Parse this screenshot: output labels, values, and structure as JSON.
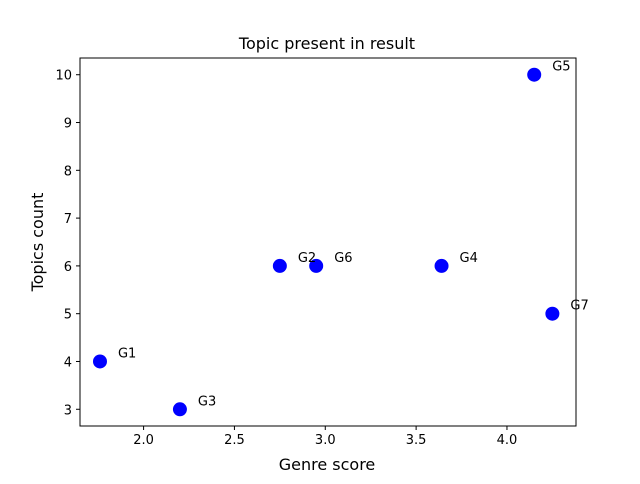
{
  "chart_data": {
    "type": "scatter",
    "title": "Topic present in result",
    "xlabel": "Genre score",
    "ylabel": "Topics count",
    "xlim": [
      1.65,
      4.38
    ],
    "ylim": [
      2.65,
      10.35
    ],
    "xticks": [
      2.0,
      2.5,
      3.0,
      3.5,
      4.0
    ],
    "xtick_labels": [
      "2.0",
      "2.5",
      "3.0",
      "3.5",
      "4.0"
    ],
    "yticks": [
      3,
      4,
      5,
      6,
      7,
      8,
      9,
      10
    ],
    "ytick_labels": [
      "3",
      "4",
      "5",
      "6",
      "7",
      "8",
      "9",
      "10"
    ],
    "grid": false,
    "marker_color": "#0000ff",
    "points": [
      {
        "label": "G1",
        "x": 1.76,
        "y": 4
      },
      {
        "label": "G2",
        "x": 2.75,
        "y": 6
      },
      {
        "label": "G3",
        "x": 2.2,
        "y": 3
      },
      {
        "label": "G4",
        "x": 3.64,
        "y": 6
      },
      {
        "label": "G5",
        "x": 4.15,
        "y": 10
      },
      {
        "label": "G6",
        "x": 2.95,
        "y": 6
      },
      {
        "label": "G7",
        "x": 4.25,
        "y": 5
      }
    ]
  }
}
